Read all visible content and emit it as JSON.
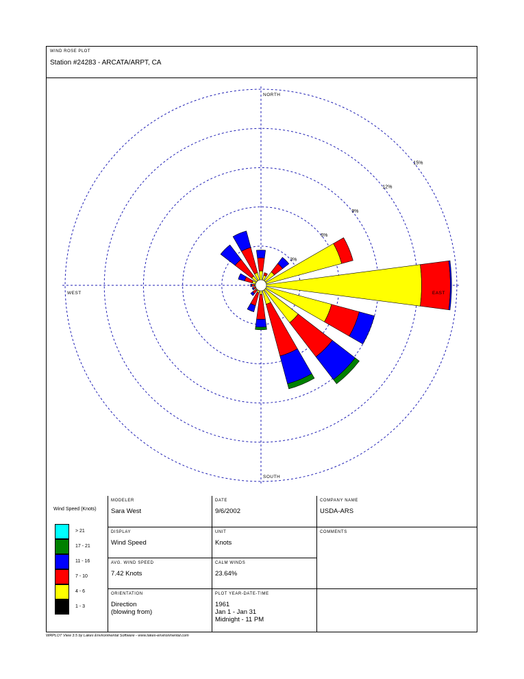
{
  "header": {
    "plot_label": "WIND ROSE PLOT",
    "station": "Station #24283 - ARCATA/ARPT, CA"
  },
  "chart_data": {
    "type": "polar-stacked-bar",
    "title": "WIND ROSE PLOT",
    "compass_labels": {
      "north": "NORTH",
      "south": "SOUTH",
      "east": "EAST",
      "west": "WEST"
    },
    "ring_labels": [
      "3%",
      "6%",
      "9%",
      "12%",
      "15%"
    ],
    "rmax_percent": 16,
    "direction_convention": "blowing from",
    "bins": [
      "1 - 3",
      "4 - 6",
      "7 - 10",
      "11 - 16",
      "17 - 21",
      "> 21"
    ],
    "bin_colors": [
      "#000000",
      "#ffff00",
      "#ff0000",
      "#0000ff",
      "#008000",
      "#00ffff"
    ],
    "directions": [
      "N",
      "NNE",
      "NE",
      "ENE",
      "E",
      "ESE",
      "SE",
      "SSE",
      "S",
      "SSW",
      "SW",
      "WSW",
      "W",
      "WNW",
      "NW",
      "NNW"
    ],
    "values": [
      [
        0.3,
        0.8,
        1.0,
        0.6,
        0.0,
        0.0
      ],
      [
        0.3,
        0.5,
        0.2,
        0.0,
        0.0,
        0.0
      ],
      [
        0.3,
        1.0,
        0.8,
        0.6,
        0.0,
        0.0
      ],
      [
        0.3,
        6.1,
        0.9,
        0.0,
        0.0,
        0.0
      ],
      [
        0.3,
        12.0,
        2.2,
        0.1,
        0.0,
        0.0
      ],
      [
        0.3,
        5.3,
        2.2,
        1.2,
        0.0,
        0.0
      ],
      [
        0.3,
        3.3,
        3.3,
        2.2,
        0.4,
        0.0
      ],
      [
        0.3,
        1.2,
        4.1,
        2.2,
        0.4,
        0.0
      ],
      [
        0.3,
        0.4,
        1.9,
        0.6,
        0.2,
        0.0
      ],
      [
        0.3,
        0.3,
        1.0,
        0.5,
        0.0,
        0.0
      ],
      [
        0.3,
        0.2,
        0.3,
        0.2,
        0.0,
        0.0
      ],
      [
        0.3,
        0.1,
        0.2,
        0.1,
        0.0,
        0.0
      ],
      [
        0.3,
        0.2,
        0.2,
        0.1,
        0.0,
        0.0
      ],
      [
        0.3,
        0.4,
        0.6,
        0.5,
        0.0,
        0.0
      ],
      [
        0.3,
        0.6,
        1.6,
        1.4,
        0.0,
        0.0
      ],
      [
        0.3,
        0.7,
        2.0,
        1.3,
        0.0,
        0.0
      ]
    ]
  },
  "info": {
    "modeler_label": "MODELER",
    "modeler": "Sara West",
    "date_label": "DATE",
    "date": "9/6/2002",
    "company_label": "COMPANY NAME",
    "company": "USDA-ARS",
    "display_label": "DISPLAY",
    "display": "Wind Speed",
    "unit_label": "UNIT",
    "unit": "Knots",
    "comments_label": "COMMENTS",
    "avg_label": "AVG. WIND SPEED",
    "avg": "7.42 Knots",
    "calm_label": "CALM WINDS",
    "calm": "23.64%",
    "orientation_label": "ORIENTATION",
    "orientation": "Direction\n(blowing from)",
    "period_label": "PLOT YEAR-DATE-TIME",
    "period": "1961\nJan 1 - Jan 31\nMidnight - 11 PM"
  },
  "legend": {
    "title": "Wind Speed (Knots)",
    "items": [
      {
        "label": "> 21",
        "color": "#00ffff"
      },
      {
        "label": "17 - 21",
        "color": "#008000"
      },
      {
        "label": "11 - 16",
        "color": "#0000ff"
      },
      {
        "label": "7 - 10",
        "color": "#ff0000"
      },
      {
        "label": "4 - 6",
        "color": "#ffff00"
      },
      {
        "label": "1 - 3",
        "color": "#000000"
      }
    ]
  },
  "footer": "WRPLOT View 3.5 by Lakes Environmental Software - www.lakes-environmental.com"
}
